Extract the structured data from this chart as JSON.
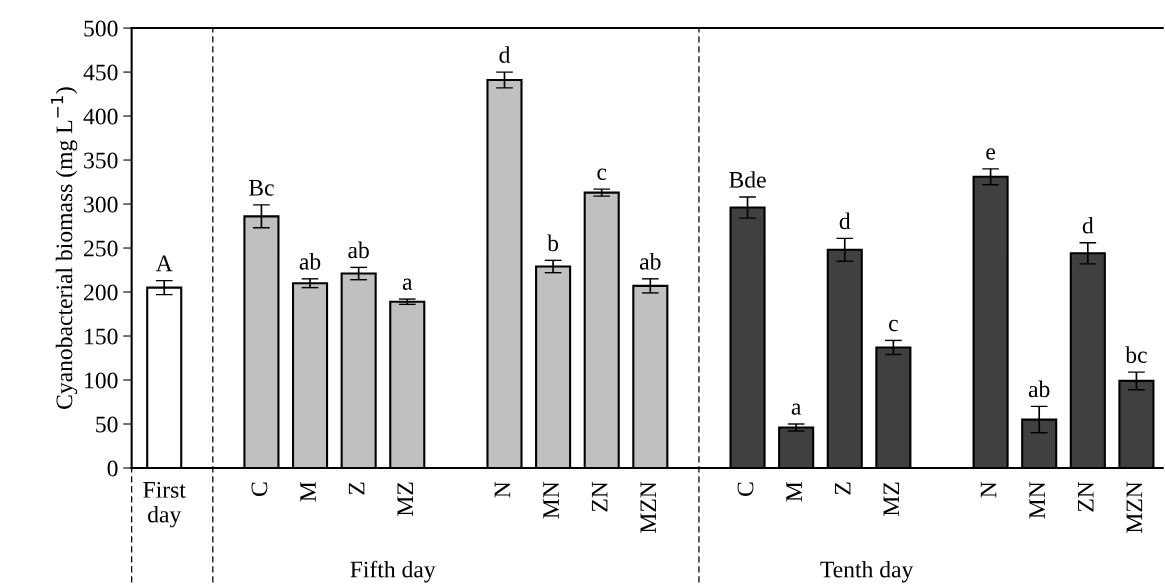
{
  "chart_data": {
    "type": "bar",
    "ylabel": "Cyanobacterial biomass (mg L$^{−1}$)",
    "categories": [
      "First\nday",
      null,
      "C",
      "M",
      "Z",
      "MZ",
      null,
      "N",
      "MN",
      "ZN",
      "MZN",
      null,
      "C",
      "M",
      "Z",
      "MZ",
      null,
      "N",
      "MN",
      "ZN",
      "MZN"
    ],
    "values": [
      205,
      null,
      286,
      210,
      221,
      189,
      null,
      441,
      229,
      313,
      207,
      null,
      296,
      46,
      248,
      137,
      null,
      331,
      55,
      244,
      99
    ],
    "errors": [
      8,
      null,
      13,
      5,
      7,
      3,
      null,
      9,
      7,
      4,
      8,
      null,
      12,
      4,
      13,
      8,
      null,
      9,
      15,
      12,
      10
    ],
    "colors": [
      "#ffffff",
      null,
      "#c0c0c0",
      "#c0c0c0",
      "#c0c0c0",
      "#c0c0c0",
      null,
      "#c0c0c0",
      "#c0c0c0",
      "#c0c0c0",
      "#c0c0c0",
      null,
      "#404040",
      "#404040",
      "#404040",
      "#404040",
      null,
      "#404040",
      "#404040",
      "#404040",
      "#404040"
    ],
    "value_labels": [
      "A",
      null,
      "Bc",
      "ab",
      "ab",
      "a",
      null,
      "d",
      "b",
      "c",
      "ab",
      null,
      "Bde",
      "a",
      "d",
      "c",
      null,
      "e",
      "ab",
      "d",
      "bc"
    ],
    "ylim": [
      0,
      500
    ],
    "yticks": [
      0,
      50,
      100,
      150,
      200,
      250,
      300,
      350,
      400,
      450,
      500
    ],
    "annotations": [
      "Fifth day",
      "Tenth day"
    ]
  }
}
